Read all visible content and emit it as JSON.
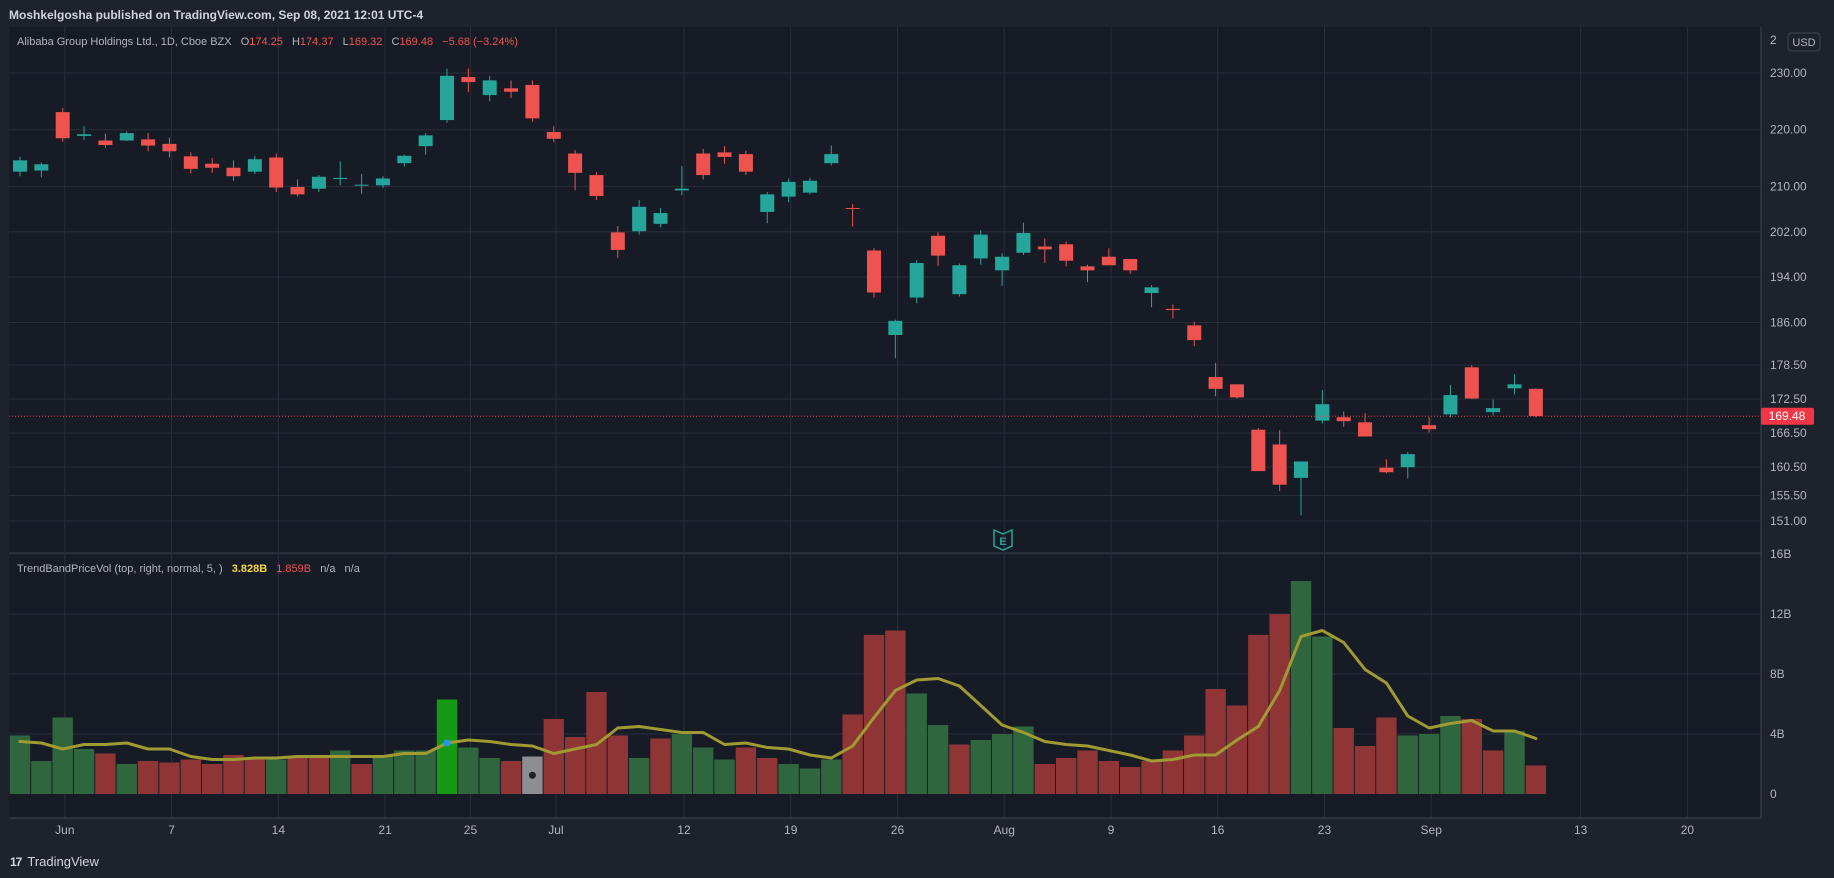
{
  "header": {
    "published": "Moshkelgosha published on TradingView.com, Sep 08, 2021 12:01 UTC-4"
  },
  "footer": {
    "brand": "TradingView",
    "logo": "tradingview-logo-icon"
  },
  "legend": {
    "symbol": "Alibaba Group Holdings Ltd., 1D, Cboe BZX",
    "o_label": "O",
    "o_val": "174.25",
    "h_label": "H",
    "h_val": "174.37",
    "l_label": "L",
    "l_val": "169.32",
    "c_label": "C",
    "c_val": "169.48",
    "change": "−5.68 (−3.24%)",
    "currency": "USD"
  },
  "indicator": {
    "name": "TrendBandPriceVol (top, right, normal, 5, )",
    "v1": "3.828B",
    "v2": "1.859B",
    "v3": "n/a",
    "v4": "n/a"
  },
  "colors": {
    "bg": "#1e222d",
    "up": "#26a69a",
    "down": "#ef5350",
    "volUp": "#30663d",
    "volDown": "#8f3535",
    "sma": "#a09a32",
    "grid": "#2a2e39",
    "text": "#b2b5be",
    "lastPrice": "#f23645"
  },
  "chart_data": [
    {
      "type": "candlestick",
      "title": "Alibaba Group Holdings Ltd., 1D, Cboe BZX",
      "last_price": 169.48,
      "last_price_label": "169.48",
      "y_ticks": [
        151.0,
        155.5,
        160.5,
        166.5,
        172.5,
        178.5,
        186.0,
        194.0,
        202.0,
        210.0,
        220.0,
        230.0
      ],
      "y_tick_labels": [
        "151.00",
        "155.50",
        "160.50",
        "166.50",
        "172.50",
        "178.50",
        "186.00",
        "194.00",
        "202.00",
        "210.00",
        "220.00",
        "230.00"
      ],
      "y_partial_label": "2",
      "x_labels": [
        "Jun",
        "7",
        "14",
        "21",
        "25",
        "Jul",
        "12",
        "19",
        "26",
        "Aug",
        "9",
        "16",
        "23",
        "Sep",
        "13",
        "20"
      ],
      "earnings_marker": "E",
      "candles": [
        {
          "o": 212.6,
          "h": 215.2,
          "l": 211.8,
          "c": 214.6
        },
        {
          "o": 212.8,
          "h": 214.2,
          "l": 211.6,
          "c": 213.9
        },
        {
          "o": 223.1,
          "h": 223.8,
          "l": 217.9,
          "c": 218.5
        },
        {
          "o": 218.9,
          "h": 220.6,
          "l": 218.2,
          "c": 219.2
        },
        {
          "o": 218.1,
          "h": 219.3,
          "l": 216.8,
          "c": 217.3
        },
        {
          "o": 218.1,
          "h": 219.7,
          "l": 218.0,
          "c": 219.4
        },
        {
          "o": 218.3,
          "h": 219.4,
          "l": 216.2,
          "c": 217.2
        },
        {
          "o": 217.5,
          "h": 218.6,
          "l": 215.1,
          "c": 216.2
        },
        {
          "o": 215.3,
          "h": 216.0,
          "l": 212.3,
          "c": 213.1
        },
        {
          "o": 214.0,
          "h": 215.0,
          "l": 212.4,
          "c": 213.3
        },
        {
          "o": 213.3,
          "h": 214.6,
          "l": 211.0,
          "c": 211.8
        },
        {
          "o": 212.6,
          "h": 215.4,
          "l": 212.2,
          "c": 214.8
        },
        {
          "o": 215.1,
          "h": 215.8,
          "l": 209.0,
          "c": 209.8
        },
        {
          "o": 209.9,
          "h": 211.2,
          "l": 208.2,
          "c": 208.6
        },
        {
          "o": 209.6,
          "h": 212.0,
          "l": 209.0,
          "c": 211.7
        },
        {
          "o": 211.3,
          "h": 214.4,
          "l": 210.2,
          "c": 211.5
        },
        {
          "o": 210.3,
          "h": 212.2,
          "l": 208.7,
          "c": 210.3
        },
        {
          "o": 210.2,
          "h": 211.8,
          "l": 209.7,
          "c": 211.4
        },
        {
          "o": 214.1,
          "h": 215.6,
          "l": 213.5,
          "c": 215.4
        },
        {
          "o": 217.1,
          "h": 219.4,
          "l": 215.6,
          "c": 219.0
        },
        {
          "o": 221.7,
          "h": 230.8,
          "l": 221.2,
          "c": 229.5
        },
        {
          "o": 229.3,
          "h": 230.8,
          "l": 226.6,
          "c": 228.4
        },
        {
          "o": 226.1,
          "h": 229.5,
          "l": 225.0,
          "c": 228.7
        },
        {
          "o": 227.3,
          "h": 228.7,
          "l": 225.6,
          "c": 226.7
        },
        {
          "o": 227.9,
          "h": 228.7,
          "l": 221.4,
          "c": 222.0
        },
        {
          "o": 219.6,
          "h": 220.6,
          "l": 217.8,
          "c": 218.4
        },
        {
          "o": 215.8,
          "h": 216.4,
          "l": 209.3,
          "c": 212.4
        },
        {
          "o": 212.0,
          "h": 212.5,
          "l": 207.6,
          "c": 208.3
        },
        {
          "o": 201.9,
          "h": 203.0,
          "l": 197.4,
          "c": 198.8
        },
        {
          "o": 202.1,
          "h": 207.6,
          "l": 201.5,
          "c": 206.4
        },
        {
          "o": 203.4,
          "h": 206.2,
          "l": 202.8,
          "c": 205.3
        },
        {
          "o": 209.3,
          "h": 213.6,
          "l": 208.5,
          "c": 209.6
        },
        {
          "o": 215.8,
          "h": 216.6,
          "l": 211.2,
          "c": 212.0
        },
        {
          "o": 216.0,
          "h": 217.1,
          "l": 214.0,
          "c": 215.2
        },
        {
          "o": 215.7,
          "h": 216.3,
          "l": 212.0,
          "c": 212.6
        },
        {
          "o": 205.5,
          "h": 209.0,
          "l": 203.5,
          "c": 208.6
        },
        {
          "o": 208.2,
          "h": 211.4,
          "l": 207.2,
          "c": 210.8
        },
        {
          "o": 208.9,
          "h": 211.5,
          "l": 208.6,
          "c": 211.0
        },
        {
          "o": 214.1,
          "h": 217.2,
          "l": 213.7,
          "c": 215.7
        },
        {
          "o": 206.2,
          "h": 206.9,
          "l": 202.9,
          "c": 206.1
        },
        {
          "o": 198.7,
          "h": 199.1,
          "l": 190.4,
          "c": 191.3
        },
        {
          "o": 183.8,
          "h": 186.5,
          "l": 179.7,
          "c": 186.3
        },
        {
          "o": 190.4,
          "h": 197.0,
          "l": 189.4,
          "c": 196.5
        },
        {
          "o": 201.3,
          "h": 201.9,
          "l": 196.0,
          "c": 197.8
        },
        {
          "o": 191.0,
          "h": 196.4,
          "l": 190.6,
          "c": 196.1
        },
        {
          "o": 197.3,
          "h": 202.3,
          "l": 196.2,
          "c": 201.5
        },
        {
          "o": 195.2,
          "h": 198.2,
          "l": 192.5,
          "c": 197.6
        },
        {
          "o": 198.3,
          "h": 203.6,
          "l": 197.9,
          "c": 201.8
        },
        {
          "o": 199.4,
          "h": 200.8,
          "l": 196.5,
          "c": 198.9
        },
        {
          "o": 199.8,
          "h": 200.3,
          "l": 195.9,
          "c": 196.9
        },
        {
          "o": 195.9,
          "h": 196.2,
          "l": 193.1,
          "c": 195.2
        },
        {
          "o": 197.6,
          "h": 199.1,
          "l": 196.5,
          "c": 196.1
        },
        {
          "o": 197.2,
          "h": 197.2,
          "l": 194.6,
          "c": 195.2
        },
        {
          "o": 191.2,
          "h": 192.6,
          "l": 188.7,
          "c": 192.2
        },
        {
          "o": 188.4,
          "h": 189.2,
          "l": 186.7,
          "c": 188.2
        },
        {
          "o": 185.5,
          "h": 186.1,
          "l": 181.8,
          "c": 182.9
        },
        {
          "o": 176.4,
          "h": 178.9,
          "l": 173.0,
          "c": 174.3
        },
        {
          "o": 175.1,
          "h": 175.1,
          "l": 172.6,
          "c": 172.8
        },
        {
          "o": 167.1,
          "h": 167.4,
          "l": 159.8,
          "c": 159.8
        },
        {
          "o": 164.5,
          "h": 167.0,
          "l": 156.3,
          "c": 157.4
        },
        {
          "o": 158.6,
          "h": 161.5,
          "l": 152.0,
          "c": 161.5
        },
        {
          "o": 168.7,
          "h": 174.1,
          "l": 168.2,
          "c": 171.6
        },
        {
          "o": 169.3,
          "h": 170.3,
          "l": 167.6,
          "c": 168.6
        },
        {
          "o": 168.4,
          "h": 170.0,
          "l": 165.9,
          "c": 165.9
        },
        {
          "o": 160.4,
          "h": 161.9,
          "l": 159.4,
          "c": 159.6
        },
        {
          "o": 160.5,
          "h": 163.2,
          "l": 158.5,
          "c": 162.8
        },
        {
          "o": 167.9,
          "h": 169.3,
          "l": 166.6,
          "c": 167.2
        },
        {
          "o": 169.8,
          "h": 175.0,
          "l": 169.3,
          "c": 173.2
        },
        {
          "o": 178.1,
          "h": 178.5,
          "l": 172.5,
          "c": 172.6
        },
        {
          "o": 170.2,
          "h": 172.4,
          "l": 169.6,
          "c": 170.9
        },
        {
          "o": 174.4,
          "h": 176.9,
          "l": 173.3,
          "c": 175.1
        },
        {
          "o": 174.3,
          "h": 174.4,
          "l": 169.3,
          "c": 169.5
        }
      ]
    },
    {
      "type": "bar",
      "title": "TrendBandPriceVol (top, right, normal, 5, )",
      "y_ticks": [
        0,
        4,
        8,
        12,
        16
      ],
      "y_tick_labels": [
        "0",
        "4B",
        "8B",
        "12B",
        "16B"
      ],
      "values_billions": [
        3.9,
        2.2,
        5.1,
        3.0,
        2.7,
        2.0,
        2.2,
        2.1,
        2.3,
        2.0,
        2.6,
        2.4,
        2.3,
        2.4,
        2.4,
        2.9,
        2.0,
        2.5,
        2.9,
        2.9,
        6.3,
        3.1,
        2.4,
        2.2,
        2.5,
        5.0,
        3.8,
        6.8,
        3.9,
        2.4,
        3.7,
        4.0,
        3.1,
        2.3,
        3.1,
        2.4,
        2.0,
        1.7,
        2.3,
        5.3,
        10.6,
        10.9,
        6.7,
        4.6,
        3.3,
        3.6,
        4.0,
        4.5,
        2.0,
        2.4,
        2.9,
        2.2,
        1.8,
        2.2,
        2.9,
        3.9,
        7.0,
        5.9,
        10.6,
        12.0,
        14.2,
        10.5,
        4.4,
        3.2,
        5.1,
        3.9,
        4.0,
        5.2,
        5.0,
        2.9,
        4.2,
        1.9
      ],
      "bar_colors": [
        "up",
        "up",
        "up",
        "up",
        "down",
        "up",
        "down",
        "down",
        "down",
        "down",
        "down",
        "down",
        "up",
        "down",
        "down",
        "up",
        "down",
        "up",
        "up",
        "up",
        "bright",
        "up",
        "up",
        "down",
        "gray",
        "down",
        "down",
        "down",
        "down",
        "up",
        "down",
        "up",
        "up",
        "up",
        "down",
        "down",
        "up",
        "up",
        "up",
        "down",
        "down",
        "down",
        "up",
        "up",
        "down",
        "up",
        "up",
        "up",
        "down",
        "down",
        "down",
        "down",
        "down",
        "down",
        "down",
        "down",
        "down",
        "down",
        "down",
        "down",
        "up",
        "up",
        "down",
        "down",
        "down",
        "up",
        "up",
        "up",
        "down",
        "down",
        "up",
        "down"
      ],
      "sma_billions": [
        3.5,
        3.4,
        3.0,
        3.3,
        3.3,
        3.4,
        3.0,
        3.0,
        2.5,
        2.3,
        2.3,
        2.4,
        2.4,
        2.5,
        2.5,
        2.5,
        2.5,
        2.5,
        2.7,
        2.7,
        3.4,
        3.6,
        3.5,
        3.3,
        3.2,
        2.7,
        3.0,
        3.3,
        4.4,
        4.5,
        4.3,
        4.1,
        4.1,
        3.3,
        3.4,
        3.1,
        3.0,
        2.6,
        2.4,
        3.2,
        5.1,
        6.9,
        7.6,
        7.7,
        7.2,
        5.9,
        4.6,
        4.1,
        3.5,
        3.3,
        3.2,
        2.9,
        2.6,
        2.2,
        2.3,
        2.6,
        2.6,
        3.6,
        4.5,
        6.9,
        10.5,
        10.9,
        10.1,
        8.3,
        7.4,
        5.2,
        4.4,
        4.7,
        4.9,
        4.2,
        4.2,
        3.7
      ],
      "markers": [
        {
          "index": 20,
          "kind": "dot",
          "color": "#2196f3"
        },
        {
          "index": 24,
          "kind": "dot",
          "color": "#1e222d"
        }
      ]
    }
  ]
}
